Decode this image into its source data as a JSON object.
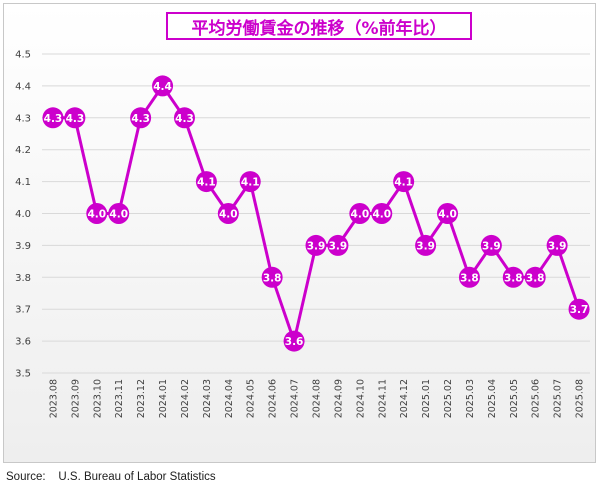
{
  "chart_data": {
    "type": "line",
    "title": "平均労働賃金の推移（%前年比）",
    "categories": [
      "2023.08",
      "2023.09",
      "2023.10",
      "2023.11",
      "2023.12",
      "2024.01",
      "2024.02",
      "2024.03",
      "2024.04",
      "2024.05",
      "2024.06",
      "2024.07",
      "2024.08",
      "2024.09",
      "2024.10",
      "2024.11",
      "2024.12",
      "2025.01",
      "2025.02",
      "2025.03",
      "2025.04",
      "2025.05",
      "2025.06",
      "2025.07",
      "2025.08"
    ],
    "values": [
      4.3,
      4.3,
      4.0,
      4.0,
      4.3,
      4.4,
      4.3,
      4.1,
      4.0,
      4.1,
      3.8,
      3.6,
      3.9,
      3.9,
      4.0,
      4.0,
      4.1,
      3.9,
      4.0,
      3.8,
      3.9,
      3.8,
      3.8,
      3.9,
      3.7
    ],
    "ylim": [
      3.5,
      4.5
    ],
    "yticks": [
      "3.5",
      "3.6",
      "3.7",
      "3.8",
      "3.9",
      "4.0",
      "4.1",
      "4.2",
      "4.3",
      "4.4",
      "4.5"
    ],
    "grid": true,
    "legend": "none",
    "colors": {
      "line": "#cc00cc",
      "marker": "#cc00cc",
      "label": "#ffffff",
      "title": "#cc00cc"
    }
  },
  "source_label": "Source:",
  "source_text": "U.S. Bureau of Labor Statistics"
}
